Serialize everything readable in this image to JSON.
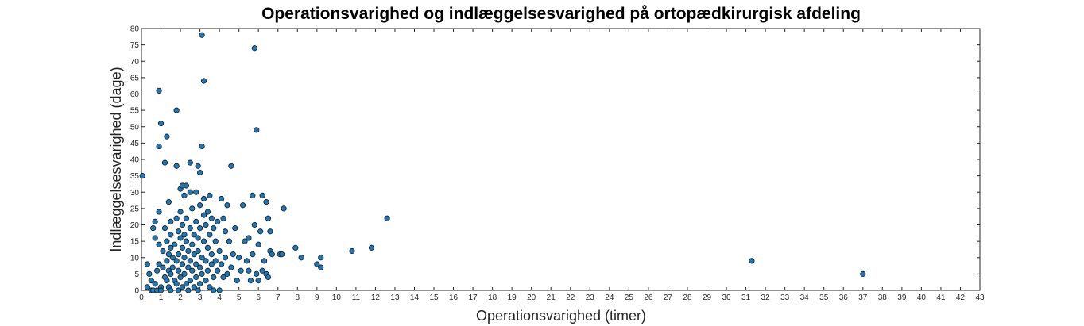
{
  "chart_data": {
    "type": "scatter",
    "title": "Operationsvarighed og indlæggelsesvarighed på ortopædkirurgisk afdeling",
    "xlabel": "Operationsvarighed (timer)",
    "ylabel": "Indlæggelsesvarighed (dage)",
    "xlim": [
      0,
      43
    ],
    "ylim": [
      0,
      80
    ],
    "xticks": [
      0,
      1,
      2,
      3,
      4,
      5,
      6,
      7,
      8,
      9,
      10,
      11,
      12,
      13,
      14,
      15,
      16,
      17,
      18,
      19,
      20,
      21,
      22,
      23,
      24,
      25,
      26,
      27,
      28,
      29,
      30,
      31,
      32,
      33,
      34,
      35,
      36,
      37,
      38,
      39,
      40,
      41,
      42,
      43
    ],
    "yticks": [
      0,
      5,
      10,
      15,
      20,
      25,
      30,
      35,
      40,
      45,
      50,
      55,
      60,
      65,
      70,
      75,
      80
    ],
    "grid": false,
    "marker_color": "#1f77b4",
    "points": [
      [
        0.05,
        35
      ],
      [
        0.3,
        1
      ],
      [
        0.3,
        8
      ],
      [
        0.4,
        5
      ],
      [
        0.5,
        3
      ],
      [
        0.5,
        0
      ],
      [
        0.6,
        0
      ],
      [
        0.6,
        19
      ],
      [
        0.7,
        16
      ],
      [
        0.7,
        21
      ],
      [
        0.7,
        2
      ],
      [
        0.8,
        0
      ],
      [
        0.8,
        6
      ],
      [
        0.9,
        61
      ],
      [
        0.9,
        44
      ],
      [
        0.9,
        24
      ],
      [
        0.9,
        8
      ],
      [
        0.9,
        14
      ],
      [
        1.0,
        51
      ],
      [
        1.0,
        1
      ],
      [
        1.0,
        0
      ],
      [
        1.1,
        12
      ],
      [
        1.1,
        7
      ],
      [
        1.2,
        39
      ],
      [
        1.2,
        19
      ],
      [
        1.2,
        4
      ],
      [
        1.3,
        47
      ],
      [
        1.3,
        15
      ],
      [
        1.3,
        3
      ],
      [
        1.3,
        9
      ],
      [
        1.4,
        27
      ],
      [
        1.4,
        11
      ],
      [
        1.4,
        6
      ],
      [
        1.4,
        1
      ],
      [
        1.5,
        21
      ],
      [
        1.5,
        17
      ],
      [
        1.5,
        13
      ],
      [
        1.5,
        5
      ],
      [
        1.5,
        0
      ],
      [
        1.6,
        10
      ],
      [
        1.6,
        7
      ],
      [
        1.7,
        3
      ],
      [
        1.7,
        14
      ],
      [
        1.8,
        55
      ],
      [
        1.8,
        38
      ],
      [
        1.8,
        22
      ],
      [
        1.8,
        9
      ],
      [
        1.8,
        2
      ],
      [
        1.9,
        18
      ],
      [
        1.9,
        11
      ],
      [
        1.9,
        6
      ],
      [
        1.9,
        0
      ],
      [
        2.0,
        31
      ],
      [
        2.0,
        24
      ],
      [
        2.0,
        16
      ],
      [
        2.0,
        4
      ],
      [
        2.1,
        32
      ],
      [
        2.1,
        20
      ],
      [
        2.1,
        13
      ],
      [
        2.1,
        8
      ],
      [
        2.1,
        1
      ],
      [
        2.2,
        29
      ],
      [
        2.2,
        17
      ],
      [
        2.2,
        10
      ],
      [
        2.2,
        5
      ],
      [
        2.3,
        32
      ],
      [
        2.3,
        22
      ],
      [
        2.3,
        15
      ],
      [
        2.3,
        2
      ],
      [
        2.4,
        12
      ],
      [
        2.4,
        7
      ],
      [
        2.4,
        0
      ],
      [
        2.5,
        39
      ],
      [
        2.5,
        30
      ],
      [
        2.5,
        19
      ],
      [
        2.5,
        9
      ],
      [
        2.5,
        3
      ],
      [
        2.6,
        25
      ],
      [
        2.6,
        14
      ],
      [
        2.6,
        6
      ],
      [
        2.7,
        17
      ],
      [
        2.7,
        11
      ],
      [
        2.7,
        1
      ],
      [
        2.8,
        30
      ],
      [
        2.8,
        21
      ],
      [
        2.8,
        8
      ],
      [
        2.8,
        4
      ],
      [
        2.9,
        38
      ],
      [
        2.9,
        16
      ],
      [
        2.9,
        12
      ],
      [
        2.9,
        0
      ],
      [
        3.0,
        36
      ],
      [
        3.0,
        26
      ],
      [
        3.0,
        19
      ],
      [
        3.0,
        7
      ],
      [
        3.0,
        2
      ],
      [
        3.1,
        78
      ],
      [
        3.1,
        44
      ],
      [
        3.1,
        10
      ],
      [
        3.1,
        5
      ],
      [
        3.2,
        64
      ],
      [
        3.2,
        28
      ],
      [
        3.2,
        23
      ],
      [
        3.2,
        15
      ],
      [
        3.3,
        20
      ],
      [
        3.3,
        9
      ],
      [
        3.3,
        3
      ],
      [
        3.4,
        24
      ],
      [
        3.4,
        13
      ],
      [
        3.4,
        6
      ],
      [
        3.5,
        29
      ],
      [
        3.5,
        17
      ],
      [
        3.5,
        1
      ],
      [
        3.6,
        22
      ],
      [
        3.6,
        11
      ],
      [
        3.6,
        8
      ],
      [
        3.7,
        19
      ],
      [
        3.7,
        4
      ],
      [
        3.7,
        0
      ],
      [
        3.8,
        9
      ],
      [
        3.8,
        15
      ],
      [
        3.9,
        21
      ],
      [
        3.9,
        6
      ],
      [
        4.0,
        0
      ],
      [
        4.0,
        12
      ],
      [
        4.1,
        28
      ],
      [
        4.1,
        8
      ],
      [
        4.2,
        22
      ],
      [
        4.2,
        4
      ],
      [
        4.3,
        18
      ],
      [
        4.3,
        10
      ],
      [
        4.4,
        26
      ],
      [
        4.4,
        5
      ],
      [
        4.5,
        15
      ],
      [
        4.6,
        38
      ],
      [
        4.6,
        7
      ],
      [
        4.7,
        11
      ],
      [
        4.8,
        19
      ],
      [
        4.9,
        3
      ],
      [
        5.0,
        10
      ],
      [
        5.1,
        6
      ],
      [
        5.2,
        26
      ],
      [
        5.3,
        15
      ],
      [
        5.4,
        9
      ],
      [
        5.5,
        6
      ],
      [
        5.5,
        16
      ],
      [
        5.6,
        3
      ],
      [
        5.7,
        29
      ],
      [
        5.7,
        11
      ],
      [
        5.8,
        74
      ],
      [
        5.8,
        20
      ],
      [
        5.9,
        49
      ],
      [
        5.9,
        5
      ],
      [
        6.0,
        14
      ],
      [
        6.0,
        3
      ],
      [
        6.1,
        18
      ],
      [
        6.2,
        29
      ],
      [
        6.2,
        6
      ],
      [
        6.3,
        9
      ],
      [
        6.4,
        5
      ],
      [
        6.4,
        27
      ],
      [
        6.5,
        4
      ],
      [
        6.5,
        22
      ],
      [
        6.6,
        18
      ],
      [
        6.6,
        12
      ],
      [
        6.7,
        11
      ],
      [
        7.1,
        11
      ],
      [
        7.2,
        11
      ],
      [
        7.3,
        25
      ],
      [
        7.9,
        13
      ],
      [
        8.2,
        10
      ],
      [
        9.0,
        8
      ],
      [
        9.2,
        10
      ],
      [
        9.2,
        7
      ],
      [
        10.8,
        12
      ],
      [
        11.8,
        13
      ],
      [
        12.6,
        22
      ],
      [
        31.3,
        9
      ],
      [
        37.0,
        5
      ]
    ]
  }
}
